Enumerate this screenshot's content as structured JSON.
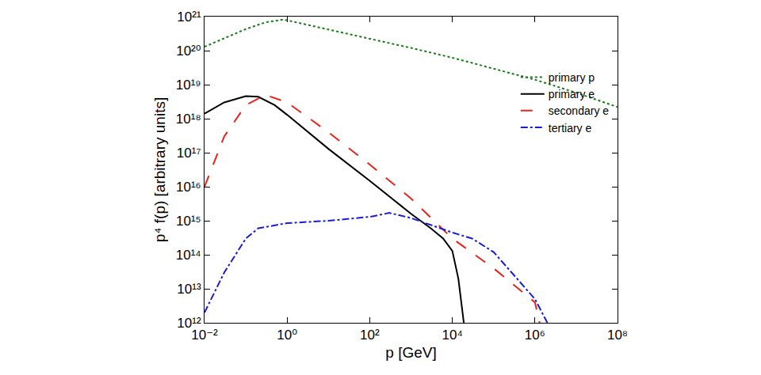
{
  "chart_data": {
    "type": "line",
    "x_label": "p [GeV]",
    "y_label": "p⁴ f(p) [arbitrary units]",
    "log": true,
    "grid": false,
    "legend": "right",
    "xlim": [
      0.01,
      100000000
    ],
    "ylim": [
      1000000000000,
      1000000000000000000000
    ],
    "xticks": [
      {
        "value": 0.01,
        "label": "10⁻²"
      },
      {
        "value": 1,
        "label": "10⁰"
      },
      {
        "value": 100,
        "label": "10²"
      },
      {
        "value": 10000,
        "label": "10⁴"
      },
      {
        "value": 1000000,
        "label": "10⁶"
      },
      {
        "value": 100000000,
        "label": "10⁸"
      }
    ],
    "yticks": [
      {
        "value": 1000000000000,
        "label": "10¹²"
      },
      {
        "value": 10000000000000,
        "label": "10¹³"
      },
      {
        "value": 100000000000000,
        "label": "10¹⁴"
      },
      {
        "value": 1000000000000000,
        "label": "10¹⁵"
      },
      {
        "value": 10000000000000000,
        "label": "10¹⁶"
      },
      {
        "value": 100000000000000000,
        "label": "10¹⁷"
      },
      {
        "value": 1000000000000000000,
        "label": "10¹⁸"
      },
      {
        "value": 10000000000000000000,
        "label": "10¹⁹"
      },
      {
        "value": 100000000000000000000,
        "label": "10²⁰"
      },
      {
        "value": 1000000000000000000000,
        "label": "10²¹"
      }
    ],
    "series": [
      {
        "name": "primary p",
        "color": "#1a7a1a",
        "line_style": "dotted",
        "x": [
          0.01,
          0.1,
          0.3,
          0.8,
          1,
          10,
          100,
          1000,
          10000,
          100000,
          1000000,
          10000000,
          100000000
        ],
        "values": [
          1.3e+20,
          4.3e+20,
          6.8e+20,
          8.2e+20,
          7.8e+20,
          4.2e+20,
          2.3e+20,
          1.2e+20,
          6.2e+19,
          3e+19,
          1.4e+19,
          5.8e+18,
          2.2e+18
        ]
      },
      {
        "name": "primary e",
        "color": "#000000",
        "line_style": "solid",
        "x": [
          0.01,
          0.03,
          0.1,
          0.2,
          0.5,
          1,
          10,
          100,
          1000,
          3000,
          6000,
          10000,
          14000,
          17000,
          19000
        ],
        "values": [
          1.4e+18,
          3e+18,
          4.6e+18,
          4.4e+18,
          2.5e+18,
          1.3e+18,
          1.3e+17,
          1.5e+16,
          1600000000000000.0,
          600000000000000.0,
          300000000000000.0,
          130000000000000.0,
          20000000000000.0,
          3000000000000.0,
          1000000000000.0
        ]
      },
      {
        "name": "secondary e",
        "color": "#e8231b",
        "line_style": "dashed",
        "x": [
          0.01,
          0.03,
          0.1,
          0.3,
          1,
          10,
          100,
          1000,
          10000,
          100000,
          1000000,
          1300000
        ],
        "values": [
          1e+16,
          3e+17,
          2.5e+18,
          5e+18,
          3e+18,
          4e+17,
          4.5e+16,
          4500000000000000.0,
          300000000000000.0,
          40000000000000.0,
          4000000000000.0,
          1000000000000.0
        ]
      },
      {
        "name": "tertiary e",
        "color": "#1c1cd6",
        "line_style": "dashdot",
        "x": [
          0.01,
          0.03,
          0.1,
          0.2,
          1,
          10,
          100,
          300,
          1000,
          10000,
          30000,
          100000,
          1000000,
          2000000
        ],
        "values": [
          2000000000000.0,
          30000000000000.0,
          300000000000000.0,
          600000000000000.0,
          850000000000000.0,
          1000000000000000.0,
          1300000000000000.0,
          1700000000000000.0,
          1200000000000000.0,
          450000000000000.0,
          300000000000000.0,
          120000000000000.0,
          5000000000000.0,
          1000000000000.0
        ]
      }
    ]
  }
}
